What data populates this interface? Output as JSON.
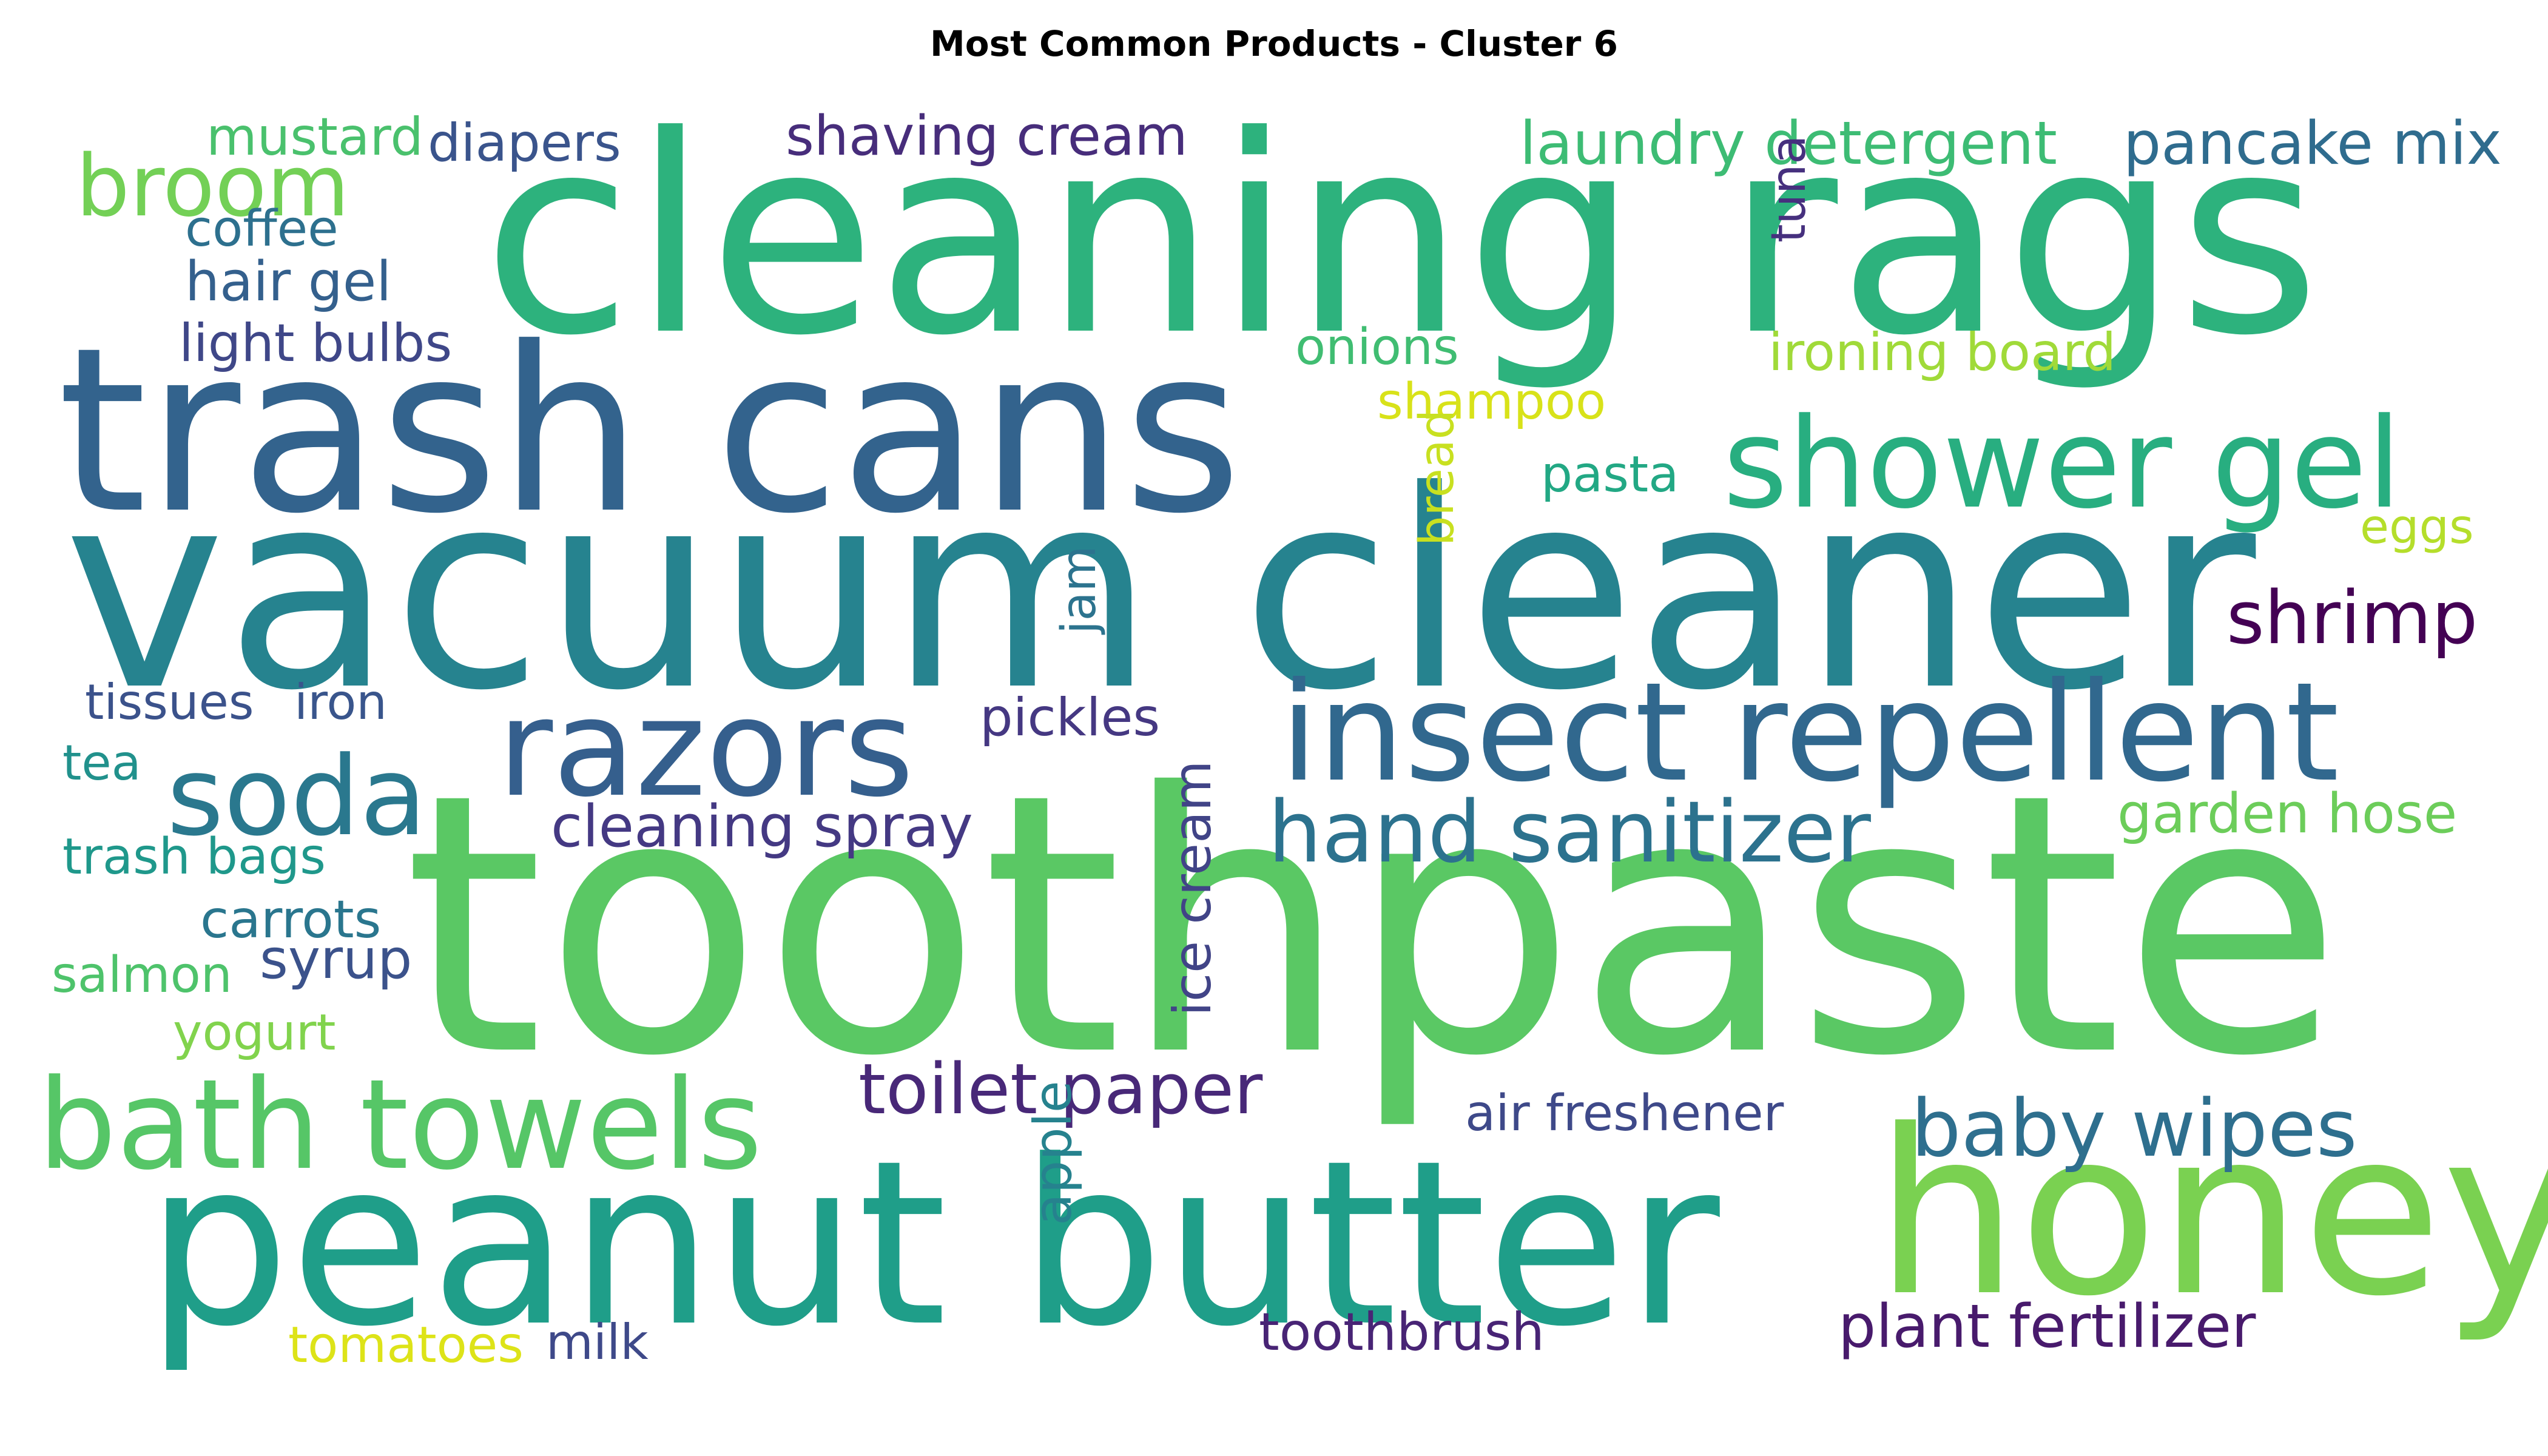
{
  "title": "Most Common Products - Cluster 6",
  "words": [
    {
      "text": "toothpaste",
      "color": "#5ac864"
    },
    {
      "text": "vacuum cleaner",
      "color": "#26838f"
    },
    {
      "text": "cleaning rags",
      "color": "#2db27d"
    },
    {
      "text": "trash cans",
      "color": "#33638d"
    },
    {
      "text": "peanut butter",
      "color": "#1f9e89"
    },
    {
      "text": "honey",
      "color": "#7ad151"
    },
    {
      "text": "insect repellent",
      "color": "#31688e"
    },
    {
      "text": "razors",
      "color": "#355f8d"
    },
    {
      "text": "shower gel",
      "color": "#28ae80"
    },
    {
      "text": "bath towels",
      "color": "#56c667"
    },
    {
      "text": "soda",
      "color": "#2a788e"
    },
    {
      "text": "broom",
      "color": "#73d056"
    },
    {
      "text": "hand sanitizer",
      "color": "#2c728e"
    },
    {
      "text": "baby wipes",
      "color": "#2e6f8e"
    },
    {
      "text": "toilet paper",
      "color": "#482878"
    },
    {
      "text": "shrimp",
      "color": "#440154"
    },
    {
      "text": "plant fertilizer",
      "color": "#481a6c"
    },
    {
      "text": "laundry detergent",
      "color": "#3dbc74"
    },
    {
      "text": "pancake mix",
      "color": "#2f6c8e"
    },
    {
      "text": "shaving cream",
      "color": "#472d7b"
    },
    {
      "text": "cleaning spray",
      "color": "#443983"
    },
    {
      "text": "ice cream",
      "color": "#414487"
    },
    {
      "text": "garden hose",
      "color": "#6ccd5a"
    },
    {
      "text": "air freshener",
      "color": "#3e4989"
    },
    {
      "text": "toothbrush",
      "color": "#482475"
    },
    {
      "text": "pickles",
      "color": "#453882"
    },
    {
      "text": "syrup",
      "color": "#3b528b"
    },
    {
      "text": "mustard",
      "color": "#4ac16d"
    },
    {
      "text": "diapers",
      "color": "#3a548c"
    },
    {
      "text": "coffee",
      "color": "#2d708e"
    },
    {
      "text": "hair gel",
      "color": "#34608d"
    },
    {
      "text": "light bulbs",
      "color": "#3f4788"
    },
    {
      "text": "onions",
      "color": "#40bd72"
    },
    {
      "text": "ironing board",
      "color": "#a0da39"
    },
    {
      "text": "shampoo",
      "color": "#d8e219"
    },
    {
      "text": "tuna",
      "color": "#46307e"
    },
    {
      "text": "pasta",
      "color": "#22a884"
    },
    {
      "text": "eggs",
      "color": "#b5de2b"
    },
    {
      "text": "bread",
      "color": "#c8e020"
    },
    {
      "text": "jam",
      "color": "#2c738e"
    },
    {
      "text": "tissues",
      "color": "#3b528b"
    },
    {
      "text": "iron",
      "color": "#39558c"
    },
    {
      "text": "tea",
      "color": "#21918c"
    },
    {
      "text": "trash bags",
      "color": "#1f988b"
    },
    {
      "text": "carrots",
      "color": "#2a768e"
    },
    {
      "text": "salmon",
      "color": "#4ec36b"
    },
    {
      "text": "yogurt",
      "color": "#81d34d"
    },
    {
      "text": "apple",
      "color": "#26828e"
    },
    {
      "text": "tomatoes",
      "color": "#dde318"
    },
    {
      "text": "milk",
      "color": "#3e4989"
    }
  ]
}
